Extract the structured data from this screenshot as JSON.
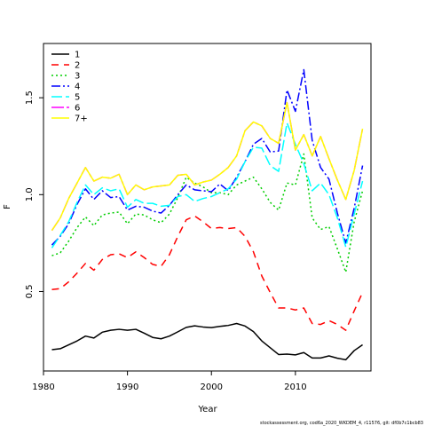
{
  "chart_data": {
    "type": "line",
    "xlabel": "Year",
    "ylabel": "F",
    "xlim": [
      1980,
      2019
    ],
    "ylim": [
      0.09,
      1.78
    ],
    "xticks": [
      1980,
      1990,
      2000,
      2010
    ],
    "yticks": [
      0.5,
      1.0,
      1.5
    ],
    "legend_position": "top-left",
    "footer": "stockassessment.org, cod6a_2020_WKDEM_4, r11576, git: df0b7c1bcb83",
    "x": [
      1981,
      1982,
      1983,
      1984,
      1985,
      1986,
      1987,
      1988,
      1989,
      1990,
      1991,
      1992,
      1993,
      1994,
      1995,
      1996,
      1997,
      1998,
      1999,
      2000,
      2001,
      2002,
      2003,
      2004,
      2005,
      2006,
      2007,
      2008,
      2009,
      2010,
      2011,
      2012,
      2013,
      2014,
      2015,
      2016,
      2017,
      2018
    ],
    "series": [
      {
        "name": "1",
        "color": "#000000",
        "dash": "solid",
        "values": [
          0.2,
          0.205,
          0.225,
          0.245,
          0.27,
          0.26,
          0.29,
          0.3,
          0.305,
          0.3,
          0.305,
          0.285,
          0.263,
          0.256,
          0.27,
          0.292,
          0.315,
          0.323,
          0.317,
          0.314,
          0.32,
          0.325,
          0.335,
          0.322,
          0.293,
          0.245,
          0.21,
          0.175,
          0.177,
          0.173,
          0.185,
          0.157,
          0.157,
          0.168,
          0.156,
          0.148,
          0.195,
          0.225
        ]
      },
      {
        "name": "2",
        "color": "#ff0000",
        "dash": "8,6",
        "values": [
          0.51,
          0.515,
          0.55,
          0.595,
          0.645,
          0.61,
          0.665,
          0.69,
          0.695,
          0.675,
          0.705,
          0.675,
          0.64,
          0.63,
          0.69,
          0.785,
          0.87,
          0.89,
          0.86,
          0.825,
          0.83,
          0.825,
          0.83,
          0.785,
          0.705,
          0.58,
          0.495,
          0.415,
          0.415,
          0.405,
          0.415,
          0.335,
          0.33,
          0.35,
          0.33,
          0.3,
          0.4,
          0.495
        ]
      },
      {
        "name": "3",
        "color": "#00cd00",
        "dash": "2,3",
        "values": [
          0.685,
          0.7,
          0.76,
          0.83,
          0.885,
          0.84,
          0.895,
          0.905,
          0.91,
          0.85,
          0.9,
          0.895,
          0.87,
          0.855,
          0.9,
          0.985,
          1.09,
          1.06,
          1.04,
          1.01,
          1.01,
          1.0,
          1.05,
          1.07,
          1.09,
          1.03,
          0.96,
          0.92,
          1.06,
          1.05,
          1.21,
          0.88,
          0.82,
          0.835,
          0.72,
          0.6,
          0.86,
          1.02
        ]
      },
      {
        "name": "4",
        "color": "#0000ff",
        "dash": "10,3,2,3",
        "values": [
          0.74,
          0.785,
          0.85,
          0.95,
          1.03,
          0.975,
          1.02,
          0.985,
          0.99,
          0.92,
          0.94,
          0.935,
          0.915,
          0.905,
          0.945,
          1.0,
          1.05,
          1.025,
          1.02,
          1.015,
          1.055,
          1.02,
          1.09,
          1.17,
          1.26,
          1.29,
          1.22,
          1.225,
          1.54,
          1.43,
          1.645,
          1.28,
          1.14,
          1.08,
          0.905,
          0.75,
          0.93,
          1.15
        ]
      },
      {
        "name": "5",
        "color": "#00ffff",
        "dash": "12,4",
        "values": [
          0.725,
          0.79,
          0.86,
          0.96,
          1.05,
          1.0,
          1.035,
          1.02,
          1.03,
          0.935,
          0.975,
          0.955,
          0.955,
          0.94,
          0.945,
          0.99,
          1.0,
          0.965,
          0.98,
          0.99,
          1.01,
          1.03,
          1.08,
          1.17,
          1.245,
          1.24,
          1.15,
          1.12,
          1.37,
          1.26,
          1.16,
          1.02,
          1.06,
          1.0,
          0.88,
          0.73,
          0.9,
          1.07
        ]
      },
      {
        "name": "6",
        "color": "#ff00ff",
        "dash": "14,3,4,3",
        "values": [
          0.815,
          0.88,
          0.98,
          1.06,
          1.14,
          1.07,
          1.09,
          1.085,
          1.105,
          1.0,
          1.05,
          1.025,
          1.04,
          1.045,
          1.05,
          1.1,
          1.105,
          1.05,
          1.065,
          1.075,
          1.105,
          1.14,
          1.2,
          1.33,
          1.375,
          1.355,
          1.29,
          1.265,
          1.475,
          1.23,
          1.31,
          1.2,
          1.3,
          1.185,
          1.075,
          0.975,
          1.125,
          1.34
        ]
      },
      {
        "name": "7+",
        "color": "#ffff00",
        "dash": "solid",
        "values": [
          0.815,
          0.88,
          0.98,
          1.06,
          1.14,
          1.07,
          1.09,
          1.085,
          1.105,
          1.0,
          1.05,
          1.025,
          1.04,
          1.045,
          1.05,
          1.1,
          1.105,
          1.05,
          1.065,
          1.075,
          1.105,
          1.14,
          1.2,
          1.33,
          1.375,
          1.355,
          1.29,
          1.265,
          1.475,
          1.23,
          1.31,
          1.2,
          1.3,
          1.185,
          1.075,
          0.975,
          1.125,
          1.34
        ]
      }
    ]
  }
}
